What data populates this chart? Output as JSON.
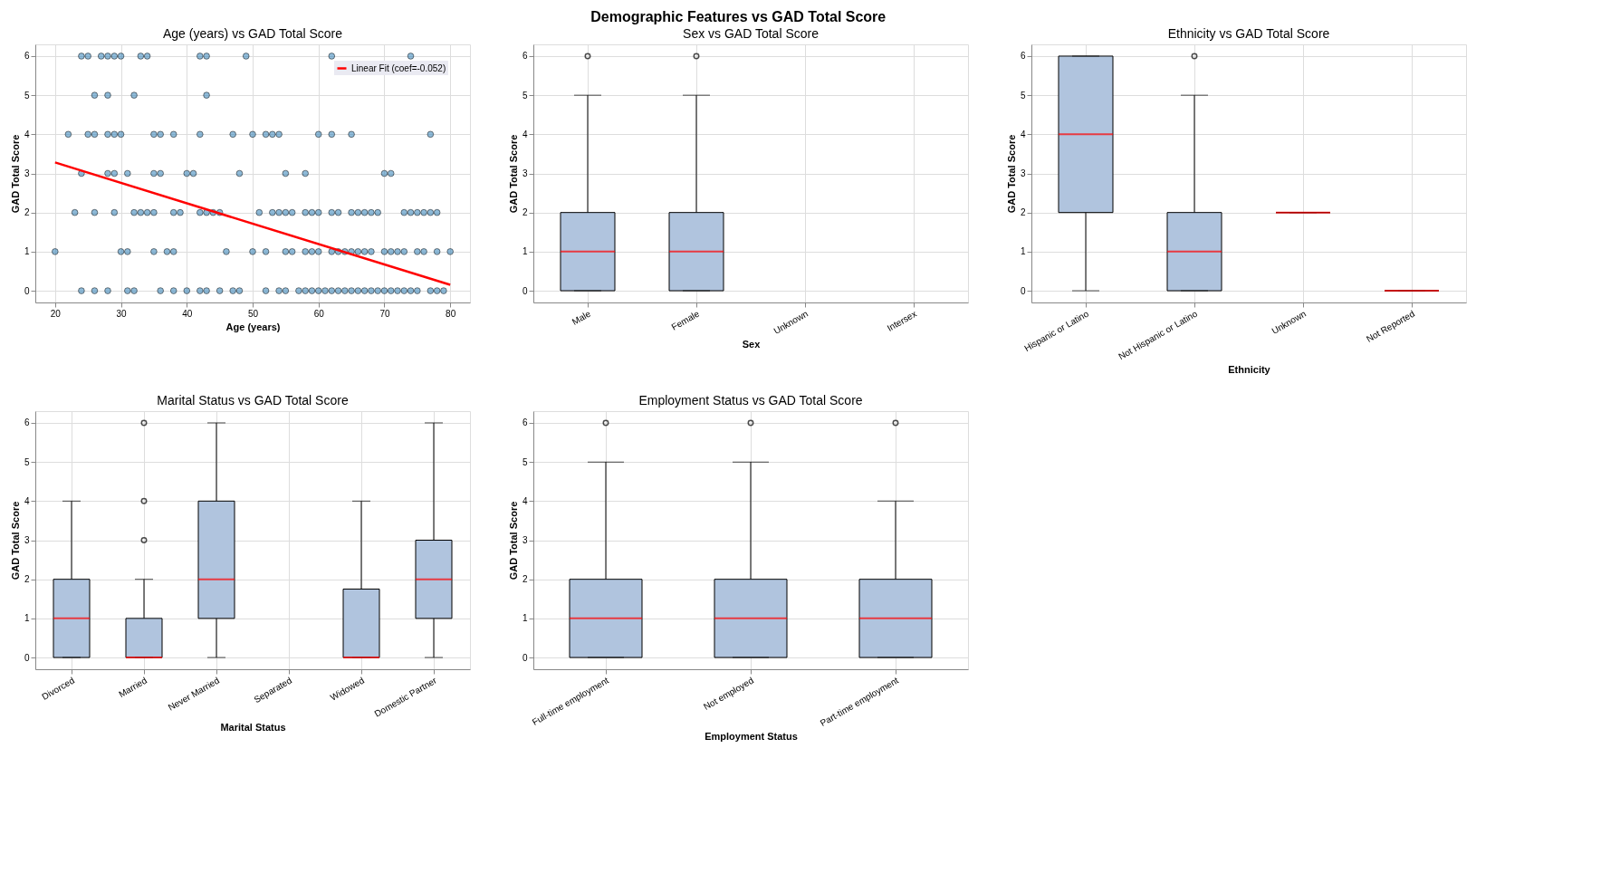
{
  "chart_data": [
    {
      "type": "scatter",
      "title": "Age (years) vs GAD Total Score",
      "xlabel": "Age (years)",
      "ylabel": "GAD Total Score",
      "annotations": [
        "Demographic Features vs GAD Total Score"
      ],
      "xlim": [
        17,
        83
      ],
      "xticks": [
        20,
        30,
        40,
        50,
        60,
        70,
        80
      ],
      "ylim": [
        -0.3,
        6.3
      ],
      "yticks": [
        0,
        1,
        2,
        3,
        4,
        5,
        6
      ],
      "grid": true,
      "legend": "top right",
      "series": [
        {
          "type": "scatter",
          "marker": "circle",
          "color": "#1f77b4",
          "x": [
            24,
            25,
            27,
            28,
            29,
            30,
            33,
            34,
            42,
            43,
            49,
            62,
            74,
            26,
            28,
            32,
            43,
            22,
            25,
            26,
            28,
            29,
            30,
            35,
            36,
            38,
            42,
            47,
            50,
            52,
            53,
            54,
            60,
            62,
            65,
            77,
            24,
            28,
            29,
            31,
            35,
            36,
            40,
            41,
            48,
            55,
            58,
            70,
            71,
            23,
            26,
            29,
            32,
            33,
            34,
            35,
            38,
            39,
            42,
            43,
            44,
            45,
            51,
            53,
            54,
            55,
            56,
            58,
            59,
            60,
            62,
            63,
            65,
            66,
            67,
            68,
            69,
            73,
            74,
            75,
            76,
            77,
            78,
            20,
            30,
            31,
            35,
            37,
            38,
            46,
            50,
            52,
            55,
            56,
            58,
            59,
            60,
            62,
            63,
            64,
            65,
            66,
            67,
            68,
            70,
            71,
            72,
            73,
            75,
            76,
            78,
            80,
            24,
            26,
            28,
            31,
            32,
            36,
            38,
            40,
            42,
            43,
            45,
            47,
            48,
            52,
            54,
            55,
            57,
            58,
            59,
            60,
            61,
            62,
            63,
            64,
            65,
            66,
            67,
            68,
            69,
            70,
            71,
            72,
            73,
            74,
            75,
            77,
            78,
            79
          ],
          "values": [
            6,
            6,
            6,
            6,
            6,
            6,
            6,
            6,
            6,
            6,
            6,
            6,
            6,
            5,
            5,
            5,
            5,
            4,
            4,
            4,
            4,
            4,
            4,
            4,
            4,
            4,
            4,
            4,
            4,
            4,
            4,
            4,
            4,
            4,
            4,
            4,
            3,
            3,
            3,
            3,
            3,
            3,
            3,
            3,
            3,
            3,
            3,
            3,
            3,
            2,
            2,
            2,
            2,
            2,
            2,
            2,
            2,
            2,
            2,
            2,
            2,
            2,
            2,
            2,
            2,
            2,
            2,
            2,
            2,
            2,
            2,
            2,
            2,
            2,
            2,
            2,
            2,
            2,
            2,
            2,
            2,
            2,
            2,
            1,
            1,
            1,
            1,
            1,
            1,
            1,
            1,
            1,
            1,
            1,
            1,
            1,
            1,
            1,
            1,
            1,
            1,
            1,
            1,
            1,
            1,
            1,
            1,
            1,
            1,
            1,
            1,
            1,
            0,
            0,
            0,
            0,
            0,
            0,
            0,
            0,
            0,
            0,
            0,
            0,
            0,
            0,
            0,
            0,
            0,
            0,
            0,
            0,
            0,
            0,
            0,
            0,
            0,
            0,
            0,
            0,
            0,
            0,
            0,
            0,
            0,
            0,
            0,
            0,
            0,
            0
          ]
        },
        {
          "type": "line",
          "marker": "none",
          "name": "Linear Fit (coef=-0.052)",
          "color": "#ff0000",
          "x": [
            20,
            80
          ],
          "values": [
            3.28,
            0.15
          ]
        }
      ]
    },
    {
      "type": "box",
      "title": "Sex vs GAD Total Score",
      "xlabel": "Sex",
      "ylabel": "GAD Total Score",
      "categories": [
        "Male",
        "Female",
        "Unknown",
        "Intersex"
      ],
      "ylim": [
        -0.3,
        6.3
      ],
      "yticks": [
        0,
        1,
        2,
        3,
        4,
        5,
        6
      ],
      "grid": true,
      "boxes": [
        {
          "low": 0,
          "q1": 0,
          "median": 1,
          "q3": 2,
          "high": 5,
          "outliers": [
            6
          ]
        },
        {
          "low": 0,
          "q1": 0,
          "median": 1,
          "q3": 2,
          "high": 5,
          "outliers": [
            6
          ]
        },
        null,
        null
      ]
    },
    {
      "type": "box",
      "title": "Ethnicity vs GAD Total Score",
      "xlabel": "Ethnicity",
      "ylabel": "GAD Total Score",
      "categories": [
        "Hispanic or Latino",
        "Not Hispanic or Latino",
        "Unknown",
        "Not Reported"
      ],
      "ylim": [
        -0.3,
        6.3
      ],
      "yticks": [
        0,
        1,
        2,
        3,
        4,
        5,
        6
      ],
      "grid": true,
      "boxes": [
        {
          "low": 0,
          "q1": 2,
          "median": 4,
          "q3": 6,
          "high": 6
        },
        {
          "low": 0,
          "q1": 0,
          "median": 1,
          "q3": 2,
          "high": 5,
          "outliers": [
            6
          ]
        },
        {
          "low": 2,
          "q1": 2,
          "median": 2,
          "q3": 2,
          "high": 2
        },
        {
          "low": 0,
          "q1": 0,
          "median": 0,
          "q3": 0,
          "high": 0
        }
      ]
    },
    {
      "type": "box",
      "title": "Marital Status vs GAD Total Score",
      "xlabel": "Marital Status",
      "ylabel": "GAD Total Score",
      "categories": [
        "Divorced",
        "Married",
        "Never Married",
        "Separated",
        "Widowed",
        "Domestic Partner"
      ],
      "ylim": [
        -0.3,
        6.3
      ],
      "yticks": [
        0,
        1,
        2,
        3,
        4,
        5,
        6
      ],
      "grid": true,
      "boxes": [
        {
          "low": 0,
          "q1": 0,
          "median": 1,
          "q3": 2,
          "high": 4
        },
        {
          "low": 0,
          "q1": 0,
          "median": 0,
          "q3": 1,
          "high": 2,
          "outliers": [
            3,
            4,
            6
          ]
        },
        {
          "low": 0,
          "q1": 1,
          "median": 2,
          "q3": 4,
          "high": 6
        },
        null,
        {
          "low": 0,
          "q1": 0,
          "median": 0,
          "q3": 1.75,
          "high": 4
        },
        {
          "low": 0,
          "q1": 1,
          "median": 2,
          "q3": 3,
          "high": 6
        }
      ]
    },
    {
      "type": "box",
      "title": "Employment Status vs GAD Total Score",
      "xlabel": "Employment Status",
      "ylabel": "GAD Total Score",
      "categories": [
        "Full-time employment",
        "Not employed",
        "Part-time employment"
      ],
      "ylim": [
        -0.3,
        6.3
      ],
      "yticks": [
        0,
        1,
        2,
        3,
        4,
        5,
        6
      ],
      "grid": true,
      "boxes": [
        {
          "low": 0,
          "q1": 0,
          "median": 1,
          "q3": 2,
          "high": 5,
          "outliers": [
            6
          ]
        },
        {
          "low": 0,
          "q1": 0,
          "median": 1,
          "q3": 2,
          "high": 5,
          "outliers": [
            6
          ]
        },
        {
          "low": 0,
          "q1": 0,
          "median": 1,
          "q3": 2,
          "high": 4,
          "outliers": [
            6
          ]
        }
      ]
    }
  ]
}
